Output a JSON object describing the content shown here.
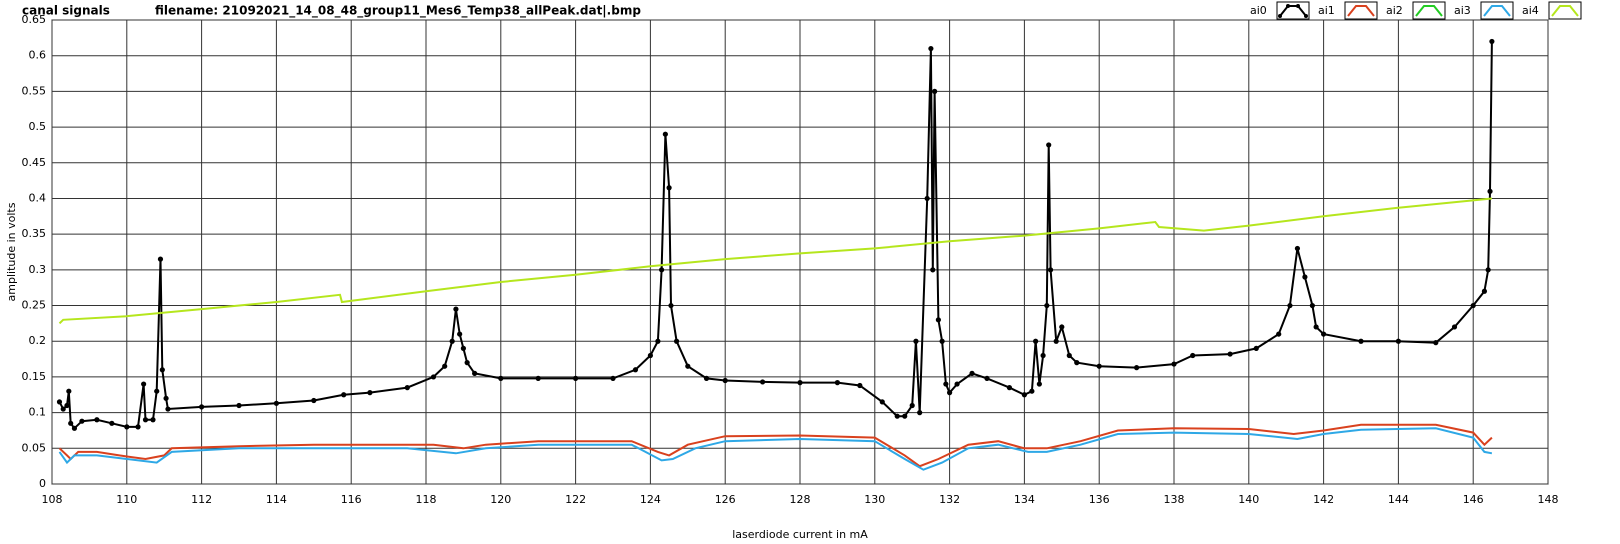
{
  "chart_data": {
    "type": "line",
    "title": "canal signals",
    "subtitle": "filename: 21092021_14_08_48_group11_Mes6_Temp38_allPeak.dat|.bmp",
    "x_label": "laserdiode current in mA",
    "y_label": "amplitude in volts",
    "xlim": [
      108,
      148
    ],
    "xticks": [
      108,
      110,
      112,
      114,
      116,
      118,
      120,
      122,
      124,
      126,
      128,
      130,
      132,
      134,
      136,
      138,
      140,
      142,
      144,
      146,
      148
    ],
    "ylim": [
      0,
      0.65
    ],
    "yticks": [
      0,
      0.05,
      0.1,
      0.15,
      0.2,
      0.25,
      0.3,
      0.35,
      0.4,
      0.45,
      0.5,
      0.55,
      0.6,
      0.65
    ],
    "grid": true,
    "legend": "top-right",
    "series": [
      {
        "name": "ai0",
        "color": "#000000",
        "markers": true,
        "x": [
          108.2,
          108.3,
          108.4,
          108.45,
          108.5,
          108.6,
          108.8,
          109.2,
          109.6,
          110.0,
          110.3,
          110.45,
          110.5,
          110.7,
          110.8,
          110.9,
          110.95,
          111.05,
          111.1,
          112,
          113,
          114,
          115,
          115.8,
          116.5,
          117.5,
          118.2,
          118.5,
          118.7,
          118.8,
          118.9,
          119.0,
          119.1,
          119.3,
          120,
          121,
          122,
          123,
          123.6,
          124.0,
          124.2,
          124.3,
          124.4,
          124.5,
          124.55,
          124.7,
          125,
          125.5,
          126,
          127,
          128,
          129,
          129.6,
          130.2,
          130.6,
          130.8,
          131.0,
          131.1,
          131.2,
          131.4,
          131.5,
          131.55,
          131.6,
          131.7,
          131.8,
          131.9,
          132.0,
          132.2,
          132.6,
          133,
          133.6,
          134.0,
          134.2,
          134.3,
          134.4,
          134.5,
          134.6,
          134.65,
          134.7,
          134.85,
          135.0,
          135.2,
          135.4,
          136,
          137,
          138,
          138.5,
          139.5,
          140.2,
          140.8,
          141.1,
          141.3,
          141.5,
          141.7,
          141.8,
          142,
          143,
          144,
          145,
          145.5,
          146,
          146.3,
          146.4,
          146.45,
          146.5
        ],
        "values": [
          0.115,
          0.105,
          0.11,
          0.13,
          0.085,
          0.078,
          0.088,
          0.09,
          0.085,
          0.08,
          0.08,
          0.14,
          0.09,
          0.09,
          0.13,
          0.315,
          0.16,
          0.12,
          0.105,
          0.108,
          0.11,
          0.113,
          0.117,
          0.125,
          0.128,
          0.135,
          0.15,
          0.165,
          0.2,
          0.245,
          0.21,
          0.19,
          0.17,
          0.155,
          0.148,
          0.148,
          0.148,
          0.148,
          0.16,
          0.18,
          0.2,
          0.3,
          0.49,
          0.415,
          0.25,
          0.2,
          0.165,
          0.148,
          0.145,
          0.143,
          0.142,
          0.142,
          0.138,
          0.115,
          0.095,
          0.095,
          0.11,
          0.2,
          0.1,
          0.4,
          0.61,
          0.3,
          0.55,
          0.23,
          0.2,
          0.14,
          0.128,
          0.14,
          0.155,
          0.148,
          0.135,
          0.125,
          0.13,
          0.2,
          0.14,
          0.18,
          0.25,
          0.475,
          0.3,
          0.2,
          0.22,
          0.18,
          0.17,
          0.165,
          0.163,
          0.168,
          0.18,
          0.182,
          0.19,
          0.21,
          0.25,
          0.33,
          0.29,
          0.25,
          0.22,
          0.21,
          0.2,
          0.2,
          0.198,
          0.22,
          0.25,
          0.27,
          0.3,
          0.41,
          0.62
        ]
      },
      {
        "name": "ai1",
        "color": "#d9411e",
        "x": [
          108.2,
          108.4,
          108.5,
          108.7,
          109.2,
          109.8,
          110.5,
          111.0,
          111.2,
          113,
          115,
          117,
          118.2,
          119,
          119.6,
          121,
          123.5,
          124.2,
          124.5,
          125,
          126,
          128,
          130,
          130.8,
          131.2,
          131.7,
          132.5,
          133.3,
          134,
          134.6,
          135.5,
          136.5,
          138,
          140,
          141.2,
          142,
          143,
          145,
          146,
          146.3,
          146.5
        ],
        "values": [
          0.05,
          0.04,
          0.035,
          0.045,
          0.045,
          0.04,
          0.035,
          0.04,
          0.05,
          0.053,
          0.055,
          0.055,
          0.055,
          0.05,
          0.055,
          0.06,
          0.06,
          0.045,
          0.04,
          0.055,
          0.067,
          0.068,
          0.065,
          0.04,
          0.025,
          0.035,
          0.055,
          0.06,
          0.05,
          0.05,
          0.06,
          0.075,
          0.078,
          0.077,
          0.07,
          0.075,
          0.083,
          0.083,
          0.072,
          0.055,
          0.065
        ]
      },
      {
        "name": "ai2",
        "color": "#22cc22",
        "x": [],
        "values": []
      },
      {
        "name": "ai3",
        "color": "#2ea8e6",
        "x": [
          108.2,
          108.4,
          108.6,
          109.2,
          110,
          110.8,
          111.2,
          113,
          115,
          117.5,
          118.8,
          119.6,
          121,
          123.5,
          124.3,
          124.6,
          125.2,
          126,
          128,
          130,
          130.8,
          131.3,
          131.8,
          132.5,
          133.3,
          134.1,
          134.6,
          135.5,
          136.5,
          138,
          140,
          141.3,
          142,
          143,
          145,
          146,
          146.3,
          146.5
        ],
        "values": [
          0.045,
          0.03,
          0.04,
          0.04,
          0.035,
          0.03,
          0.045,
          0.05,
          0.05,
          0.05,
          0.043,
          0.05,
          0.055,
          0.055,
          0.033,
          0.035,
          0.05,
          0.06,
          0.063,
          0.06,
          0.035,
          0.02,
          0.03,
          0.05,
          0.055,
          0.045,
          0.045,
          0.055,
          0.07,
          0.072,
          0.07,
          0.063,
          0.07,
          0.076,
          0.078,
          0.065,
          0.045,
          0.043
        ]
      },
      {
        "name": "ai4",
        "color": "#b5e61d",
        "x": [
          108.2,
          108.3,
          110,
          112,
          114,
          115.7,
          115.75,
          118,
          120,
          122,
          124,
          126,
          128,
          130,
          132,
          134,
          136,
          137.5,
          137.6,
          138.8,
          140,
          142,
          144,
          146.5
        ],
        "values": [
          0.225,
          0.23,
          0.235,
          0.245,
          0.255,
          0.265,
          0.255,
          0.27,
          0.283,
          0.293,
          0.305,
          0.315,
          0.323,
          0.33,
          0.34,
          0.348,
          0.358,
          0.367,
          0.36,
          0.355,
          0.362,
          0.375,
          0.387,
          0.4
        ]
      }
    ]
  }
}
